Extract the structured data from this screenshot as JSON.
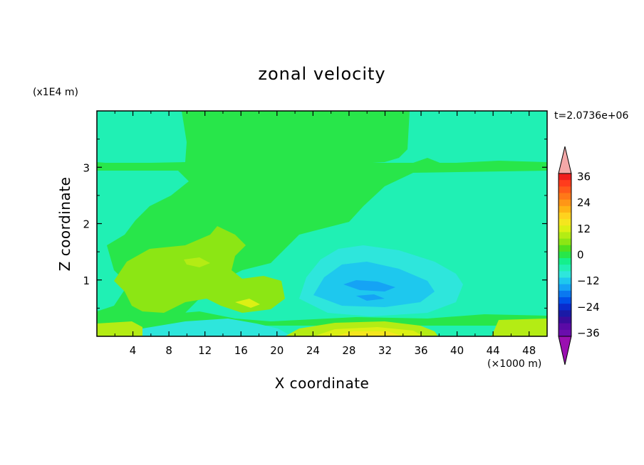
{
  "chart_data": {
    "type": "heatmap",
    "title": "zonal velocity",
    "xlabel": "X coordinate",
    "ylabel": "Z coordinate",
    "x_unit": "(×1000 m)",
    "y_unit": "(x1E4 m)",
    "time_label": "t=2.0736e+06",
    "xlim": [
      0,
      50
    ],
    "ylim": [
      0,
      4
    ],
    "x_ticks": [
      4,
      8,
      12,
      16,
      20,
      24,
      28,
      32,
      36,
      40,
      44,
      48
    ],
    "x_tick_labels": [
      "4",
      "8",
      "12",
      "16",
      "20",
      "24",
      "28",
      "32",
      "36",
      "40",
      "44",
      "48"
    ],
    "y_ticks": [
      1,
      2,
      3
    ],
    "y_tick_labels": [
      "1",
      "2",
      "3"
    ],
    "colorbar": {
      "levels": [
        -42,
        -39,
        -36,
        -33,
        -30,
        -27,
        -24,
        -21,
        -18,
        -15,
        -12,
        -9,
        -6,
        -3,
        0,
        3,
        6,
        9,
        12,
        15,
        18,
        21,
        24,
        27,
        30,
        33,
        36,
        39,
        42
      ],
      "labeled_values": [
        36,
        24,
        12,
        0,
        -12,
        -24,
        -36
      ],
      "labels": [
        "36",
        "24",
        "12",
        "0",
        "−12",
        "−24",
        "−36"
      ],
      "colors": [
        "#6a0dad",
        "#5a0aa6",
        "#3a0c9c",
        "#1a1aa6",
        "#0a2ccc",
        "#0050e8",
        "#0a78f0",
        "#15a3f5",
        "#1ec8ee",
        "#2ee6dc",
        "#20f0b4",
        "#14f08c",
        "#28e64a",
        "#50e01e",
        "#8ce614",
        "#b4ec14",
        "#dcf014",
        "#f5e61e",
        "#ffd21e",
        "#ffb414",
        "#ff9616",
        "#ff7818",
        "#ff5a1a",
        "#ff3c1c",
        "#f01e1e"
      ],
      "over_color": "#f4a8a8",
      "under_color": "#9a10b0"
    },
    "field_description_values": {
      "background": 1.5,
      "upper_plume": 3,
      "left_jet": 7,
      "left_jet_core": 10,
      "negative_cell": -6,
      "negative_cell_core": -11,
      "negative_cell_inner": -14,
      "surface_band_positive": 13,
      "surface_band_peak": 17,
      "near_surface_negative": -5
    }
  }
}
